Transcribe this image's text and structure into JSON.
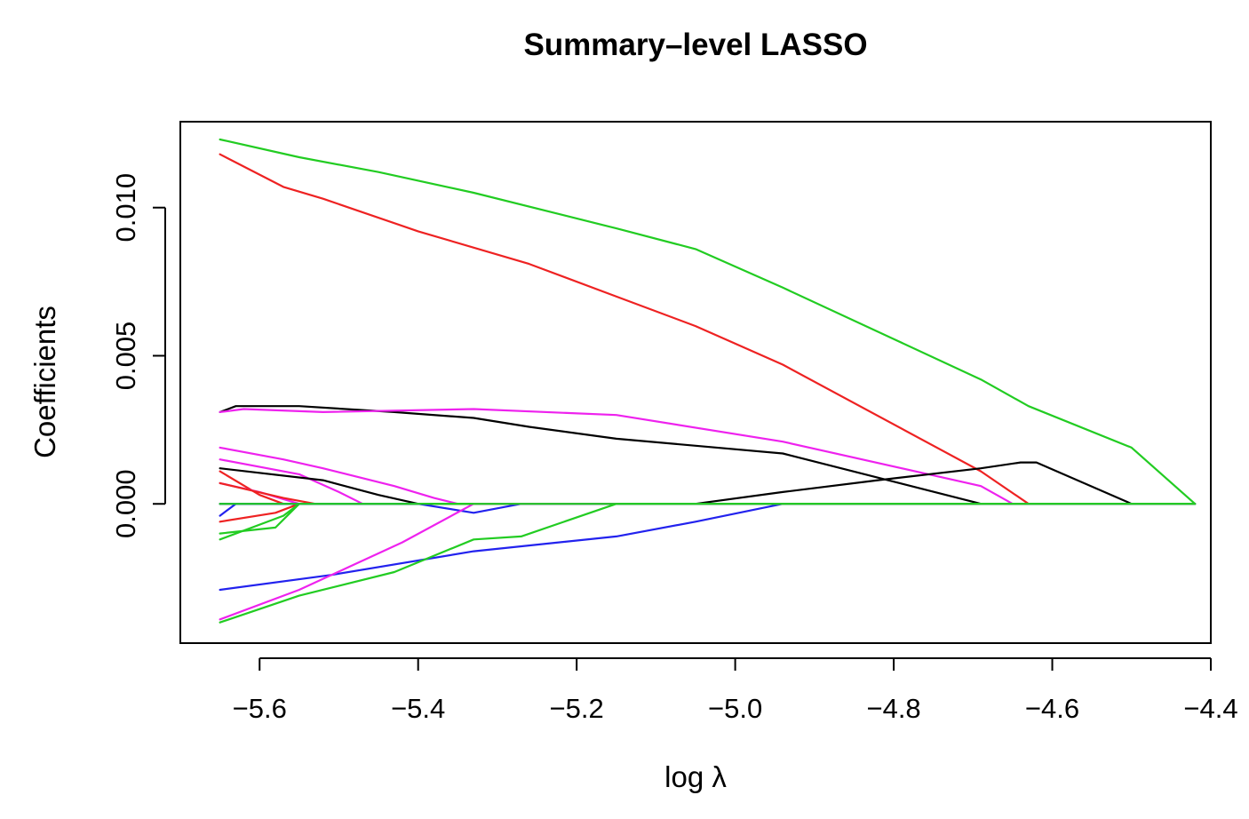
{
  "chart_data": {
    "type": "line",
    "title": "Summary–level LASSO",
    "xlabel": "log λ",
    "ylabel": "Coefficients",
    "xlim": [
      -5.7,
      -4.4
    ],
    "ylim": [
      -0.0047,
      0.0129
    ],
    "x_ticks": [
      {
        "value": -5.6,
        "label": "−5.6"
      },
      {
        "value": -5.4,
        "label": "−5.4"
      },
      {
        "value": -5.2,
        "label": "−5.2"
      },
      {
        "value": -5.0,
        "label": "−5.0"
      },
      {
        "value": -4.8,
        "label": "−4.8"
      },
      {
        "value": -4.6,
        "label": "−4.6"
      },
      {
        "value": -4.4,
        "label": "−4.4"
      }
    ],
    "y_ticks": [
      {
        "value": 0.0,
        "label": "0.000"
      },
      {
        "value": 0.005,
        "label": "0.005"
      },
      {
        "value": 0.01,
        "label": "0.010"
      }
    ],
    "grid": false,
    "legend": "none",
    "series": [
      {
        "color": "#22cc22",
        "points": [
          [
            -5.65,
            0.0123
          ],
          [
            -5.55,
            0.0117
          ],
          [
            -5.45,
            0.0112
          ],
          [
            -5.33,
            0.0105
          ],
          [
            -5.15,
            0.0093
          ],
          [
            -5.05,
            0.0086
          ],
          [
            -4.94,
            0.0073
          ],
          [
            -4.69,
            0.0042
          ],
          [
            -4.63,
            0.0033
          ],
          [
            -4.5,
            0.0019
          ],
          [
            -4.42,
            0.0
          ]
        ]
      },
      {
        "color": "#ee2222",
        "points": [
          [
            -5.65,
            0.0118
          ],
          [
            -5.57,
            0.0107
          ],
          [
            -5.52,
            0.0103
          ],
          [
            -5.4,
            0.0092
          ],
          [
            -5.26,
            0.0081
          ],
          [
            -5.14,
            0.0069
          ],
          [
            -5.05,
            0.006
          ],
          [
            -4.94,
            0.0047
          ],
          [
            -4.69,
            0.0011
          ],
          [
            -4.63,
            0.0
          ]
        ]
      },
      {
        "color": "#000000",
        "points": [
          [
            -5.65,
            0.0031
          ],
          [
            -5.63,
            0.0033
          ],
          [
            -5.55,
            0.0033
          ],
          [
            -5.43,
            0.0031
          ],
          [
            -5.33,
            0.0029
          ],
          [
            -5.26,
            0.0026
          ],
          [
            -5.15,
            0.0022
          ],
          [
            -4.94,
            0.0017
          ],
          [
            -4.69,
            0.0
          ],
          [
            -4.42,
            0.0
          ]
        ]
      },
      {
        "color": "#ee22ee",
        "points": [
          [
            -5.65,
            0.0031
          ],
          [
            -5.62,
            0.0032
          ],
          [
            -5.52,
            0.0031
          ],
          [
            -5.33,
            0.0032
          ],
          [
            -5.15,
            0.003
          ],
          [
            -4.94,
            0.0021
          ],
          [
            -4.69,
            0.0006
          ],
          [
            -4.65,
            0.0
          ],
          [
            -4.42,
            0.0
          ]
        ]
      },
      {
        "color": "#000000",
        "points": [
          [
            -5.65,
            0.0
          ],
          [
            -5.05,
            0.0
          ],
          [
            -4.94,
            0.0004
          ],
          [
            -4.82,
            0.0008
          ],
          [
            -4.69,
            0.0012
          ],
          [
            -4.64,
            0.0014
          ],
          [
            -4.62,
            0.0014
          ],
          [
            -4.5,
            0.0
          ],
          [
            -4.42,
            0.0
          ]
        ]
      },
      {
        "color": "#ee22ee",
        "points": [
          [
            -5.65,
            0.0019
          ],
          [
            -5.57,
            0.0015
          ],
          [
            -5.52,
            0.0012
          ],
          [
            -5.43,
            0.0006
          ],
          [
            -5.38,
            0.0002
          ],
          [
            -5.35,
            0.0
          ],
          [
            -4.42,
            0.0
          ]
        ]
      },
      {
        "color": "#ee22ee",
        "points": [
          [
            -5.65,
            0.0015
          ],
          [
            -5.55,
            0.001
          ],
          [
            -5.5,
            0.0004
          ],
          [
            -5.47,
            0.0
          ],
          [
            -4.42,
            0.0
          ]
        ]
      },
      {
        "color": "#000000",
        "points": [
          [
            -5.65,
            0.0012
          ],
          [
            -5.52,
            0.0008
          ],
          [
            -5.45,
            0.0003
          ],
          [
            -5.4,
            0.0
          ],
          [
            -4.42,
            0.0
          ]
        ]
      },
      {
        "color": "#ee2222",
        "points": [
          [
            -5.65,
            0.0011
          ],
          [
            -5.6,
            0.0003
          ],
          [
            -5.57,
            0.0
          ],
          [
            -4.42,
            0.0
          ]
        ]
      },
      {
        "color": "#ee22ee",
        "points": [
          [
            -5.65,
            0.0007
          ],
          [
            -5.6,
            0.0004
          ],
          [
            -5.55,
            0.0
          ],
          [
            -4.42,
            0.0
          ]
        ]
      },
      {
        "color": "#ee2222",
        "points": [
          [
            -5.65,
            0.0007
          ],
          [
            -5.57,
            0.0002
          ],
          [
            -5.53,
            0.0
          ],
          [
            -4.42,
            0.0
          ]
        ]
      },
      {
        "color": "#2222ee",
        "points": [
          [
            -5.65,
            -0.0004
          ],
          [
            -5.63,
            0.0
          ],
          [
            -4.42,
            0.0
          ]
        ]
      },
      {
        "color": "#ee2222",
        "points": [
          [
            -5.65,
            -0.0006
          ],
          [
            -5.58,
            -0.0003
          ],
          [
            -5.55,
            0.0
          ],
          [
            -4.42,
            0.0
          ]
        ]
      },
      {
        "color": "#22cc22",
        "points": [
          [
            -5.65,
            -0.001
          ],
          [
            -5.58,
            -0.0008
          ],
          [
            -5.55,
            0.0
          ],
          [
            -4.42,
            0.0
          ]
        ]
      },
      {
        "color": "#22cc22",
        "points": [
          [
            -5.65,
            -0.0012
          ],
          [
            -5.57,
            -0.0004
          ],
          [
            -5.55,
            0.0
          ],
          [
            -4.42,
            0.0
          ]
        ]
      },
      {
        "color": "#2222ee",
        "points": [
          [
            -5.65,
            0.0
          ],
          [
            -5.4,
            0.0
          ],
          [
            -5.33,
            -0.0003
          ],
          [
            -5.27,
            0.0
          ],
          [
            -4.42,
            0.0
          ]
        ]
      },
      {
        "color": "#2222ee",
        "points": [
          [
            -5.65,
            -0.0029
          ],
          [
            -5.51,
            -0.0024
          ],
          [
            -5.33,
            -0.0016
          ],
          [
            -5.15,
            -0.0011
          ],
          [
            -5.05,
            -0.0006
          ],
          [
            -4.94,
            0.0
          ],
          [
            -4.42,
            0.0
          ]
        ]
      },
      {
        "color": "#ee22ee",
        "points": [
          [
            -5.65,
            -0.0039
          ],
          [
            -5.55,
            -0.0029
          ],
          [
            -5.42,
            -0.0013
          ],
          [
            -5.33,
            0.0
          ],
          [
            -4.42,
            0.0
          ]
        ]
      },
      {
        "color": "#22cc22",
        "points": [
          [
            -5.65,
            -0.004
          ],
          [
            -5.55,
            -0.0031
          ],
          [
            -5.43,
            -0.0023
          ],
          [
            -5.33,
            -0.0012
          ],
          [
            -5.27,
            -0.0011
          ],
          [
            -5.15,
            0.0
          ],
          [
            -4.42,
            0.0
          ]
        ]
      },
      {
        "color": "#22cc22",
        "points": [
          [
            -5.65,
            0.0
          ],
          [
            -4.42,
            0.0
          ]
        ]
      }
    ]
  }
}
